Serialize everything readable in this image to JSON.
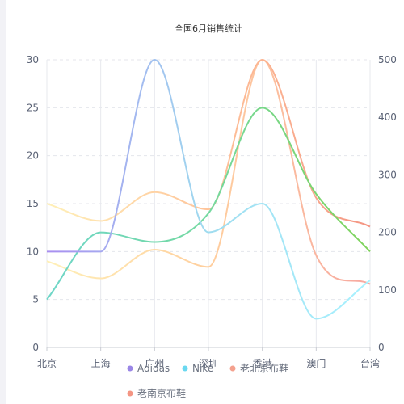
{
  "chart_data": {
    "type": "line",
    "title": "全国6月销售统计",
    "categories": [
      "北京",
      "上海",
      "广州",
      "深圳",
      "香港",
      "澳门",
      "台湾"
    ],
    "y_left": {
      "min": 0,
      "max": 30,
      "ticks": [
        "0",
        "5",
        "10",
        "15",
        "20",
        "25",
        "30"
      ]
    },
    "y_right": {
      "min": 0,
      "max": 500,
      "ticks": [
        "0",
        "100",
        "200",
        "300",
        "400",
        "500"
      ]
    },
    "grid": "horizontal-dashed",
    "smooth": true,
    "legend_position": "bottom",
    "series": [
      {
        "name": "Adidas",
        "axis": "left",
        "values": [
          10,
          10,
          30,
          12,
          15,
          3,
          7
        ],
        "gradient": [
          "#a98ef0",
          "#9fdcef",
          "#a8f2ff"
        ],
        "legend_color": "#9a86e6"
      },
      {
        "name": "Nike",
        "axis": "left",
        "values": [
          5,
          12,
          11,
          14,
          25,
          16,
          10
        ],
        "gradient": [
          "#6fd6c8",
          "#74d9a0",
          "#7fd35a"
        ],
        "legend_color": "#6ad8f0"
      },
      {
        "name": "老北京布鞋",
        "axis": "right",
        "values": [
          150,
          120,
          170,
          140,
          500,
          160,
          110
        ],
        "gradient": [
          "#fff0b8",
          "#ffcf9e",
          "#f7a8a0"
        ],
        "legend_color": "#f4a18e"
      },
      {
        "name": "老南京布鞋",
        "axis": "right",
        "values": [
          250,
          220,
          270,
          240,
          500,
          260,
          210
        ],
        "gradient": [
          "#fff0b8",
          "#ffc49a",
          "#f49583"
        ],
        "legend_color": "#f49583"
      }
    ]
  }
}
